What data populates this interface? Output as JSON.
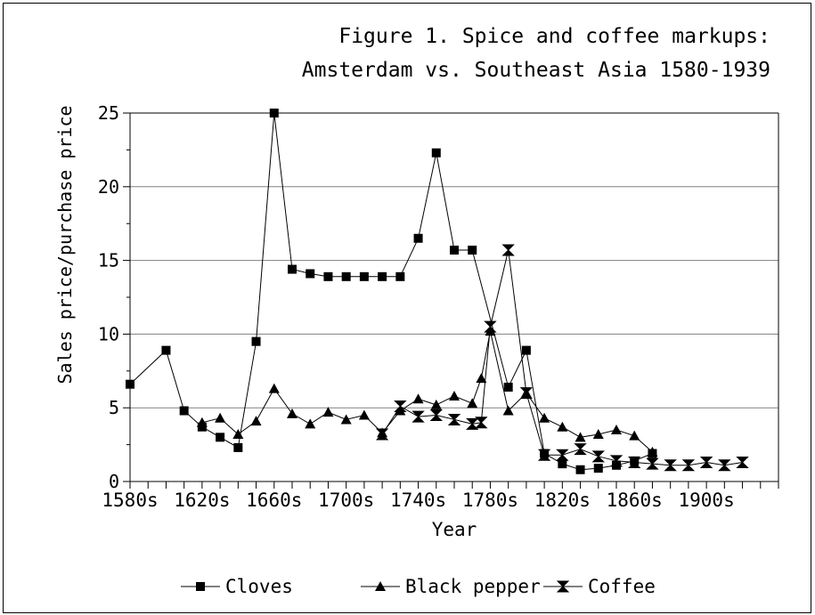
{
  "chart_data": {
    "type": "line",
    "title_lines": [
      "Figure 1. Spice and coffee markups:",
      "Amsterdam vs. Southeast Asia 1580-1939"
    ],
    "xlabel": "Year",
    "ylabel": "Sales price/purchase price",
    "xlim": [
      1580,
      1940
    ],
    "ylim": [
      0,
      25
    ],
    "y_ticks": [
      0,
      5,
      10,
      15,
      20,
      25
    ],
    "x_tick_labels": [
      {
        "year": 1580,
        "label": "1580s"
      },
      {
        "year": 1620,
        "label": "1620s"
      },
      {
        "year": 1660,
        "label": "1660s"
      },
      {
        "year": 1700,
        "label": "1700s"
      },
      {
        "year": 1740,
        "label": "1740s"
      },
      {
        "year": 1780,
        "label": "1780s"
      },
      {
        "year": 1820,
        "label": "1820s"
      },
      {
        "year": 1860,
        "label": "1860s"
      },
      {
        "year": 1900,
        "label": "1900s"
      }
    ],
    "grid": "horizontal",
    "legend_position": "bottom",
    "series": [
      {
        "name": "Cloves",
        "marker": "square",
        "points": [
          [
            1580,
            6.6
          ],
          [
            1600,
            8.9
          ],
          [
            1610,
            4.8
          ],
          [
            1620,
            3.7
          ],
          [
            1630,
            3.0
          ],
          [
            1640,
            2.3
          ],
          [
            1650,
            9.5
          ],
          [
            1660,
            25.0
          ],
          [
            1670,
            14.4
          ],
          [
            1680,
            14.1
          ],
          [
            1690,
            13.9
          ],
          [
            1700,
            13.9
          ],
          [
            1710,
            13.9
          ],
          [
            1720,
            13.9
          ],
          [
            1730,
            13.9
          ],
          [
            1740,
            16.5
          ],
          [
            1750,
            22.3
          ],
          [
            1760,
            15.7
          ],
          [
            1770,
            15.7
          ],
          [
            1790,
            6.4
          ],
          [
            1800,
            8.9
          ],
          [
            1810,
            1.9
          ],
          [
            1820,
            1.2
          ],
          [
            1830,
            0.8
          ],
          [
            1840,
            0.9
          ],
          [
            1850,
            1.1
          ],
          [
            1860,
            1.4
          ],
          [
            1870,
            1.9
          ]
        ]
      },
      {
        "name": "Black pepper",
        "marker": "triangle",
        "points": [
          [
            1620,
            4.0
          ],
          [
            1630,
            4.3
          ],
          [
            1640,
            3.2
          ],
          [
            1650,
            4.1
          ],
          [
            1660,
            6.3
          ],
          [
            1670,
            4.6
          ],
          [
            1680,
            3.9
          ],
          [
            1690,
            4.7
          ],
          [
            1700,
            4.2
          ],
          [
            1710,
            4.5
          ],
          [
            1720,
            3.3
          ],
          [
            1730,
            4.8
          ],
          [
            1740,
            5.6
          ],
          [
            1750,
            5.2
          ],
          [
            1760,
            5.8
          ],
          [
            1770,
            5.3
          ],
          [
            1775,
            7.0
          ],
          [
            1780,
            10.2
          ],
          [
            1790,
            4.8
          ],
          [
            1800,
            6.0
          ],
          [
            1810,
            4.3
          ],
          [
            1820,
            3.7
          ],
          [
            1830,
            3.0
          ],
          [
            1840,
            3.2
          ],
          [
            1850,
            3.5
          ],
          [
            1860,
            3.1
          ],
          [
            1870,
            2.0
          ]
        ]
      },
      {
        "name": "Coffee",
        "marker": "hourglass",
        "points": [
          [
            1720,
            3.2
          ],
          [
            1730,
            5.1
          ],
          [
            1740,
            4.4
          ],
          [
            1750,
            4.5
          ],
          [
            1760,
            4.2
          ],
          [
            1770,
            3.9
          ],
          [
            1775,
            4.0
          ],
          [
            1780,
            10.5
          ],
          [
            1790,
            15.7
          ],
          [
            1800,
            6.0
          ],
          [
            1810,
            1.8
          ],
          [
            1820,
            1.8
          ],
          [
            1830,
            2.2
          ],
          [
            1840,
            1.7
          ],
          [
            1850,
            1.4
          ],
          [
            1860,
            1.3
          ],
          [
            1870,
            1.2
          ],
          [
            1880,
            1.1
          ],
          [
            1890,
            1.1
          ],
          [
            1900,
            1.3
          ],
          [
            1910,
            1.1
          ],
          [
            1920,
            1.3
          ]
        ]
      }
    ]
  }
}
